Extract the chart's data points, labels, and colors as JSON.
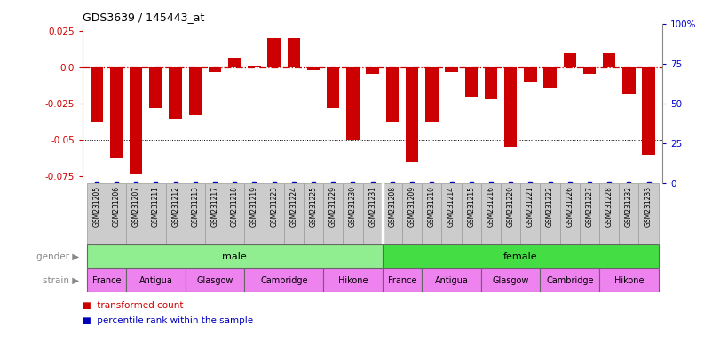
{
  "title": "GDS3639 / 145443_at",
  "samples": [
    "GSM231205",
    "GSM231206",
    "GSM231207",
    "GSM231211",
    "GSM231212",
    "GSM231213",
    "GSM231217",
    "GSM231218",
    "GSM231219",
    "GSM231223",
    "GSM231224",
    "GSM231225",
    "GSM231229",
    "GSM231230",
    "GSM231231",
    "GSM231208",
    "GSM231209",
    "GSM231210",
    "GSM231214",
    "GSM231215",
    "GSM231216",
    "GSM231220",
    "GSM231221",
    "GSM231222",
    "GSM231226",
    "GSM231227",
    "GSM231228",
    "GSM231232",
    "GSM231233"
  ],
  "bar_values": [
    -0.038,
    -0.063,
    -0.073,
    -0.028,
    -0.035,
    -0.033,
    -0.003,
    0.007,
    0.001,
    0.02,
    0.02,
    -0.002,
    -0.028,
    -0.05,
    -0.005,
    -0.038,
    -0.065,
    -0.038,
    -0.003,
    -0.02,
    -0.022,
    -0.055,
    -0.01,
    -0.014,
    0.01,
    -0.005,
    0.01,
    -0.018,
    -0.06
  ],
  "ylim_left": [
    -0.08,
    0.03
  ],
  "ylim_right": [
    0,
    100
  ],
  "yticks_left": [
    -0.075,
    -0.05,
    -0.025,
    0.0,
    0.025
  ],
  "yticks_right": [
    0,
    25,
    50,
    75,
    100
  ],
  "bar_color": "#CC0000",
  "percentile_color": "#0000BB",
  "zero_line_color": "#CC0000",
  "grid_color": "#000000",
  "bg_color": "#FFFFFF",
  "sample_box_color": "#CCCCCC",
  "sample_box_edge": "#999999",
  "gender_male_color": "#90EE90",
  "gender_female_color": "#44DD44",
  "strain_color": "#EE82EE",
  "strain_segments": [
    [
      0,
      2,
      "France"
    ],
    [
      2,
      5,
      "Antigua"
    ],
    [
      5,
      8,
      "Glasgow"
    ],
    [
      8,
      12,
      "Cambridge"
    ],
    [
      12,
      15,
      "Hikone"
    ],
    [
      15,
      17,
      "France"
    ],
    [
      17,
      20,
      "Antigua"
    ],
    [
      20,
      23,
      "Glasgow"
    ],
    [
      23,
      26,
      "Cambridge"
    ],
    [
      26,
      29,
      "Hikone"
    ]
  ]
}
